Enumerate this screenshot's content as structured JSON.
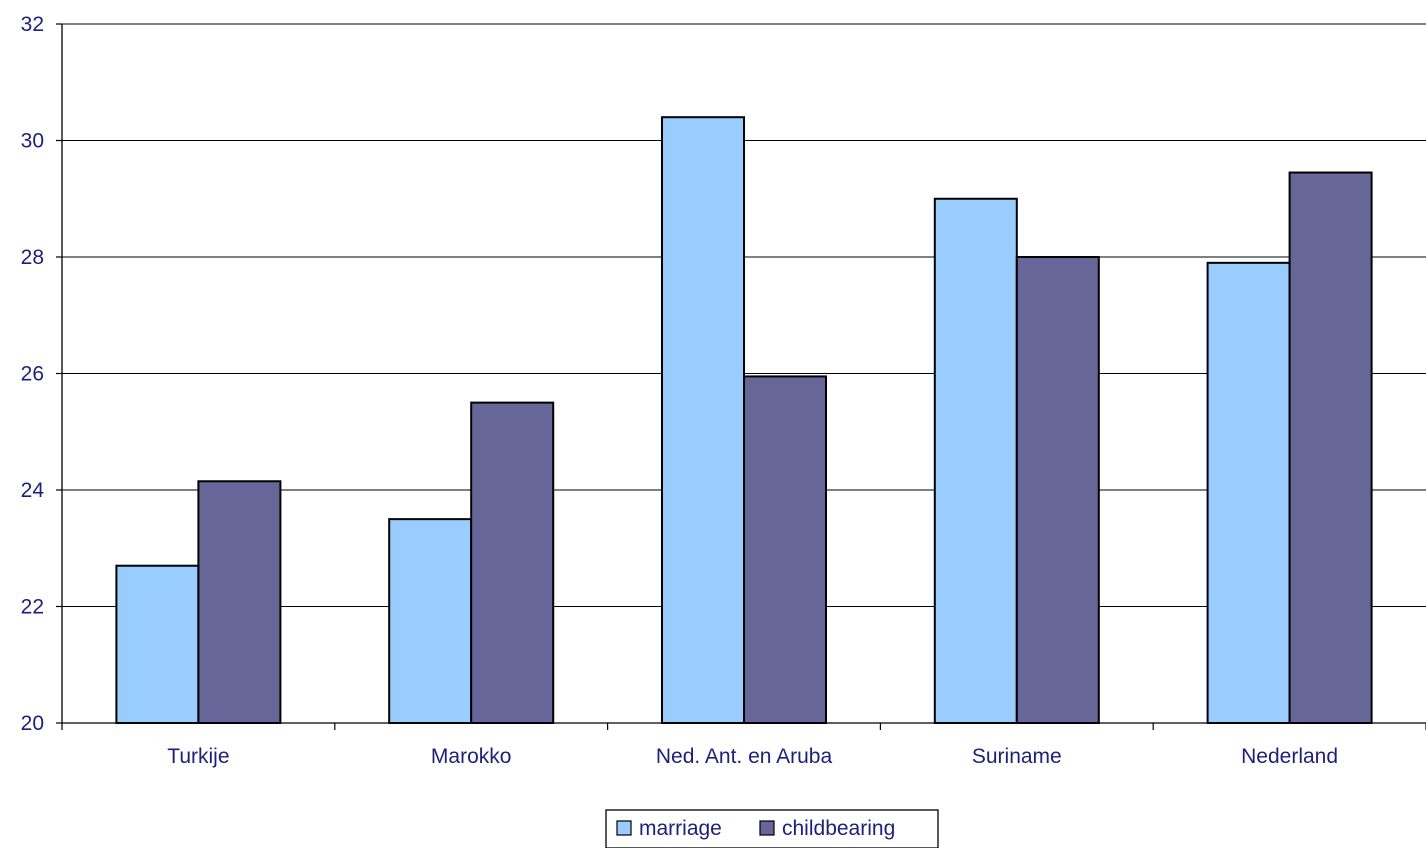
{
  "chart_data": {
    "type": "bar",
    "categories": [
      "Turkije",
      "Marokko",
      "Ned. Ant. en Aruba",
      "Suriname",
      "Nederland"
    ],
    "series": [
      {
        "name": "marriage",
        "values": [
          22.7,
          23.5,
          30.4,
          29.0,
          27.9
        ],
        "color": "#99ccff"
      },
      {
        "name": "childbearing",
        "values": [
          24.15,
          25.5,
          25.95,
          28.0,
          29.45
        ],
        "color": "#666699"
      }
    ],
    "ylim": [
      20,
      32
    ],
    "yticks": [
      "20",
      "22",
      "24",
      "26",
      "28",
      "30",
      "32"
    ],
    "grid": true,
    "legend_position": "bottom-center"
  }
}
